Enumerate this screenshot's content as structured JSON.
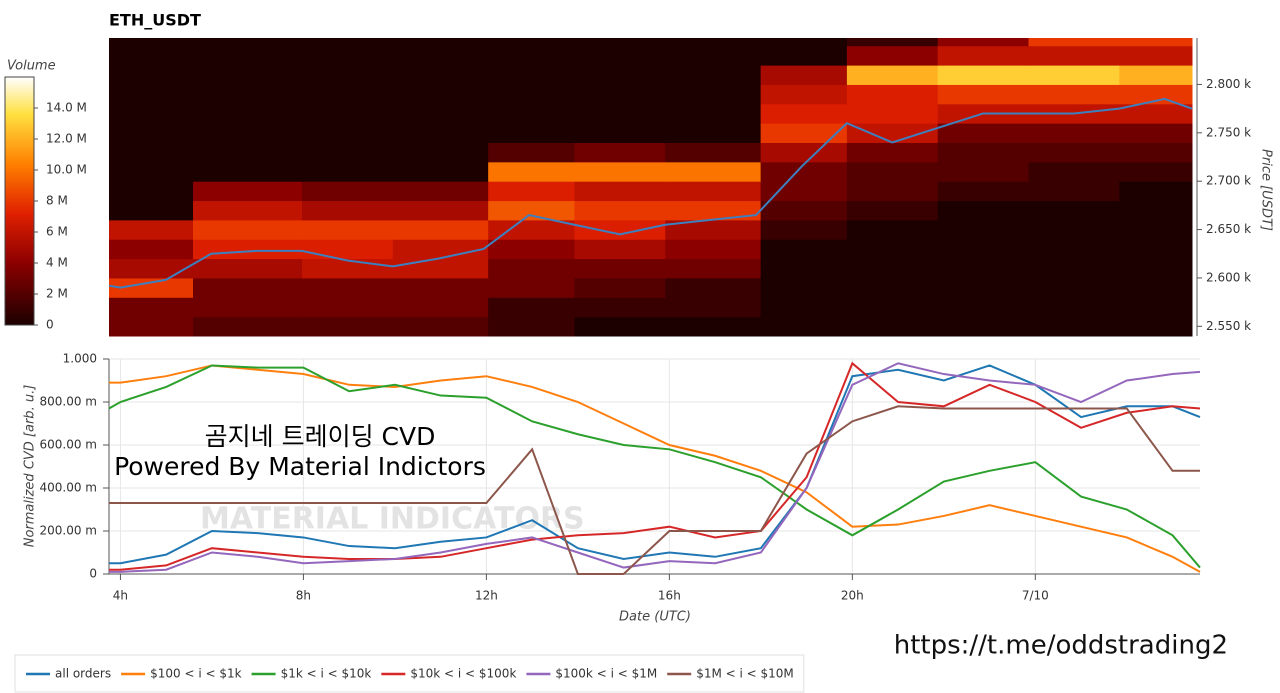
{
  "chart_data": [
    {
      "type": "heatmap",
      "title": "ETH_USDT",
      "colorbar_label": "Volume",
      "y_label": "Price [USDT]",
      "xlim": [
        3.75,
        27.6
      ],
      "ylim": [
        2540,
        2848
      ],
      "zlim": [
        0,
        16000000
      ],
      "yticks": [
        {
          "value": 2550,
          "label": "2.550 k"
        },
        {
          "value": 2600,
          "label": "2.600 k"
        },
        {
          "value": 2650,
          "label": "2.650 k"
        },
        {
          "value": 2700,
          "label": "2.700 k"
        },
        {
          "value": 2750,
          "label": "2.750 k"
        },
        {
          "value": 2800,
          "label": "2.800 k"
        }
      ],
      "zticks": [
        0,
        {
          "value": 2000000,
          "label": "2 M"
        },
        {
          "value": 4000000,
          "label": "4 M"
        },
        {
          "value": 6000000,
          "label": "6 M"
        },
        {
          "value": 8000000,
          "label": "8 M"
        },
        {
          "value": 10000000,
          "label": "10.0 M"
        },
        {
          "value": 12000000,
          "label": "12.0 M"
        },
        {
          "value": 14000000,
          "label": "14.0 M"
        }
      ],
      "x_edges": [
        3.75,
        5.6,
        8,
        10,
        12.1,
        14,
        16,
        18.1,
        20,
        22,
        24,
        26,
        27.6
      ],
      "y_edges": [
        2540,
        2560,
        2580,
        2600,
        2620,
        2640,
        2660,
        2680,
        2700,
        2720,
        2740,
        2760,
        2780,
        2800,
        2820,
        2840,
        2848
      ],
      "z": [
        [
          3000000.0,
          2000000.0,
          2000000.0,
          2000000.0,
          1000000.0,
          0,
          0,
          0,
          0,
          0,
          0,
          0
        ],
        [
          3000000.0,
          3000000.0,
          3000000.0,
          3000000.0,
          1000000.0,
          1000000.0,
          1000000.0,
          0,
          0,
          0,
          0,
          0
        ],
        [
          8000000.0,
          3000000.0,
          3000000.0,
          3000000.0,
          3000000.0,
          2000000.0,
          1000000.0,
          0,
          0,
          0,
          0,
          0
        ],
        [
          5000000.0,
          5000000.0,
          6000000.0,
          6000000.0,
          3000000.0,
          3000000.0,
          3000000.0,
          0,
          0,
          0,
          0,
          0
        ],
        [
          4000000.0,
          7000000.0,
          7000000.0,
          6000000.0,
          4000000.0,
          5000000.0,
          4000000.0,
          0,
          0,
          0,
          0,
          0
        ],
        [
          6000000.0,
          8000000.0,
          8000000.0,
          8000000.0,
          6000000.0,
          7000000.0,
          5000000.0,
          1000000.0,
          0,
          0,
          0,
          0
        ],
        [
          0,
          6000000.0,
          5000000.0,
          5000000.0,
          9000000.0,
          8000000.0,
          8000000.0,
          2000000.0,
          1000000.0,
          0,
          0,
          0
        ],
        [
          0,
          4000000.0,
          3000000.0,
          3000000.0,
          7000000.0,
          6000000.0,
          6000000.0,
          3000000.0,
          2000000.0,
          1000000.0,
          1000000.0,
          0
        ],
        [
          0,
          0,
          0,
          0,
          10000000.0,
          10000000.0,
          10000000.0,
          3000000.0,
          2000000.0,
          2000000.0,
          1000000.0,
          1000000.0
        ],
        [
          0,
          0,
          0,
          0,
          2000000.0,
          3000000.0,
          2000000.0,
          5000000.0,
          3000000.0,
          2000000.0,
          2000000.0,
          2000000.0
        ],
        [
          0,
          0,
          0,
          0,
          0,
          0,
          0,
          8000000.0,
          6000000.0,
          3000000.0,
          3000000.0,
          3000000.0
        ],
        [
          0,
          0,
          0,
          0,
          0,
          0,
          0,
          7000000.0,
          7000000.0,
          6000000.0,
          6000000.0,
          6000000.0
        ],
        [
          0,
          0,
          0,
          0,
          0,
          0,
          0,
          6000000.0,
          7000000.0,
          8000000.0,
          8000000.0,
          8000000.0
        ],
        [
          0,
          0,
          0,
          0,
          0,
          0,
          0,
          5000000.0,
          12000000.0,
          13000000.0,
          13000000.0,
          12000000.0
        ],
        [
          0,
          0,
          0,
          0,
          0,
          0,
          0,
          0,
          4000000.0,
          6000000.0,
          6000000.0,
          6000000.0
        ],
        [
          0,
          0,
          0,
          0,
          0,
          0,
          0,
          0,
          1000000.0,
          4000000.0,
          8000000.0,
          8000000.0
        ]
      ],
      "x": [
        3.75,
        4,
        5,
        6,
        7,
        8,
        9,
        10,
        11,
        12,
        13,
        14,
        15,
        16,
        17,
        18,
        19,
        20,
        21,
        22,
        23,
        24,
        25,
        26,
        27,
        27.6
      ],
      "series": [
        {
          "color": "#3d7fbf",
          "values": [
            2592,
            2590,
            2598,
            2625,
            2628,
            2628,
            2618,
            2612,
            2620,
            2630,
            2665,
            2655,
            2645,
            2655,
            2660,
            2665,
            2715,
            2760,
            2740,
            2755,
            2770,
            2770,
            2770,
            2775,
            2785,
            2775
          ]
        }
      ]
    },
    {
      "type": "line",
      "x_label": "Date (UTC)",
      "y_label": "Normalized CVD [arb. u.]",
      "xlim": [
        3.75,
        27.6
      ],
      "ylim": [
        0,
        1
      ],
      "grid": true,
      "legend": "bottom-left",
      "xticks": [
        {
          "value": 4,
          "label": "4h"
        },
        {
          "value": 8,
          "label": "8h"
        },
        {
          "value": 12,
          "label": "12h"
        },
        {
          "value": 16,
          "label": "16h"
        },
        {
          "value": 20,
          "label": "20h"
        },
        {
          "value": 24,
          "label": "7/10"
        }
      ],
      "yticks": [
        0,
        {
          "value": 0.2,
          "label": "200.00 m"
        },
        {
          "value": 0.4,
          "label": "400.00 m"
        },
        {
          "value": 0.6,
          "label": "600.00 m"
        },
        {
          "value": 0.8,
          "label": "800.00 m"
        },
        {
          "value": 1,
          "label": "1.000"
        }
      ],
      "x": [
        3.75,
        4,
        5,
        6,
        7,
        8,
        9,
        10,
        11,
        12,
        13,
        14,
        15,
        16,
        17,
        18,
        19,
        20,
        21,
        22,
        23,
        24,
        25,
        26,
        27,
        27.6
      ],
      "series": [
        {
          "name": "all orders",
          "color": "#1f77b4",
          "values": [
            0.05,
            0.05,
            0.09,
            0.2,
            0.19,
            0.17,
            0.13,
            0.12,
            0.15,
            0.17,
            0.25,
            0.12,
            0.07,
            0.1,
            0.08,
            0.12,
            0.4,
            0.92,
            0.95,
            0.9,
            0.97,
            0.88,
            0.73,
            0.78,
            0.78,
            0.73
          ]
        },
        {
          "name": "$100 < i < $1k",
          "color": "#ff7f0e",
          "values": [
            0.89,
            0.89,
            0.92,
            0.97,
            0.95,
            0.93,
            0.88,
            0.87,
            0.9,
            0.92,
            0.87,
            0.8,
            0.7,
            0.6,
            0.55,
            0.48,
            0.38,
            0.22,
            0.23,
            0.27,
            0.32,
            0.27,
            0.22,
            0.17,
            0.08,
            0.01
          ]
        },
        {
          "name": "$1k < i < $10k",
          "color": "#2ca02c",
          "values": [
            0.77,
            0.8,
            0.87,
            0.97,
            0.96,
            0.96,
            0.85,
            0.88,
            0.83,
            0.82,
            0.71,
            0.65,
            0.6,
            0.58,
            0.52,
            0.45,
            0.3,
            0.18,
            0.3,
            0.43,
            0.48,
            0.52,
            0.36,
            0.3,
            0.18,
            0.03
          ]
        },
        {
          "name": "$10k < i < $100k",
          "color": "#d62728",
          "values": [
            0.02,
            0.02,
            0.04,
            0.12,
            0.1,
            0.08,
            0.07,
            0.07,
            0.08,
            0.12,
            0.16,
            0.18,
            0.19,
            0.22,
            0.17,
            0.2,
            0.45,
            0.98,
            0.8,
            0.78,
            0.88,
            0.8,
            0.68,
            0.75,
            0.78,
            0.77
          ]
        },
        {
          "name": "$100k < i < $1M",
          "color": "#9467bd",
          "values": [
            0.01,
            0.01,
            0.02,
            0.1,
            0.08,
            0.05,
            0.06,
            0.07,
            0.1,
            0.14,
            0.17,
            0.1,
            0.03,
            0.06,
            0.05,
            0.1,
            0.4,
            0.88,
            0.98,
            0.93,
            0.9,
            0.88,
            0.8,
            0.9,
            0.93,
            0.94
          ]
        },
        {
          "name": "$1M < i < $10M",
          "color": "#8c564b",
          "values": [
            0.33,
            0.33,
            0.33,
            0.33,
            0.33,
            0.33,
            0.33,
            0.33,
            0.33,
            0.33,
            0.58,
            0,
            0,
            0.2,
            0.2,
            0.2,
            0.56,
            0.71,
            0.78,
            0.77,
            0.77,
            0.77,
            0.77,
            0.77,
            0.48,
            0.48
          ]
        }
      ],
      "annotations": [
        "곰지네 트레이딩 CVD",
        "Powered By Material Indictors",
        "MATERIAL INDICATORS",
        "https://t.me/oddstrading2"
      ]
    }
  ]
}
